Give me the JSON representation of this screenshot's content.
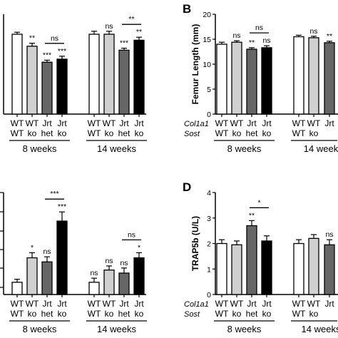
{
  "chart_data": [
    {
      "id": "A",
      "panel_label": "",
      "type": "bar",
      "ylabel": "",
      "categories": [
        {
          "line1": "WT",
          "line2": "WT"
        },
        {
          "line1": "WT",
          "line2": "ko"
        },
        {
          "line1": "Jrt",
          "line2": "het"
        },
        {
          "line1": "Jrt",
          "line2": "ko"
        },
        {
          "line1": "WT",
          "line2": "WT"
        },
        {
          "line1": "WT",
          "line2": "ko"
        },
        {
          "line1": "Jrt",
          "line2": "het"
        },
        {
          "line1": "Jrt",
          "line2": "ko"
        }
      ],
      "groups": [
        "8 weeks",
        "14 weeks"
      ],
      "ylim": [
        0,
        1
      ],
      "values": [
        0.8,
        0.68,
        0.52,
        0.55,
        0.8,
        0.8,
        0.64,
        0.74
      ],
      "errors": [
        0.02,
        0.03,
        0.02,
        0.03,
        0.03,
        0.03,
        0.02,
        0.03
      ],
      "colors": [
        "#ffffff",
        "#d0d0d0",
        "#666666",
        "#000000",
        "#ffffff",
        "#d0d0d0",
        "#666666",
        "#000000"
      ],
      "sig": [
        "",
        "**",
        "***",
        "***",
        "",
        "ns",
        "***",
        "**"
      ],
      "brackets": [
        {
          "from": 2,
          "to": 3,
          "label": "ns"
        },
        {
          "from": 6,
          "to": 7,
          "label": "**"
        }
      ]
    },
    {
      "id": "B",
      "panel_label": "B",
      "type": "bar",
      "ylabel": "Femur Length (mm)",
      "row_labels": [
        "Col1a1",
        "Sost"
      ],
      "categories": [
        {
          "line1": "WT",
          "line2": "WT"
        },
        {
          "line1": "WT",
          "line2": "ko"
        },
        {
          "line1": "Jrt",
          "line2": "het"
        },
        {
          "line1": "Jrt",
          "line2": "ko"
        },
        {
          "line1": "WT",
          "line2": "WT"
        },
        {
          "line1": "WT",
          "line2": "ko"
        },
        {
          "line1": "Jrt",
          "line2": ""
        }
      ],
      "groups": [
        "8 weeks",
        "14 week"
      ],
      "ylim": [
        0,
        20
      ],
      "yticks": [
        "0",
        "5",
        "10",
        "15",
        "20"
      ],
      "values": [
        14.0,
        14.4,
        13.0,
        13.3,
        15.5,
        15.3,
        14.3
      ],
      "errors": [
        0.4,
        0.3,
        0.3,
        0.4,
        0.3,
        0.3,
        0.3
      ],
      "colors": [
        "#ffffff",
        "#d0d0d0",
        "#666666",
        "#000000",
        "#ffffff",
        "#d0d0d0",
        "#666666"
      ],
      "sig": [
        "",
        "ns",
        "**",
        "ns",
        "",
        "ns",
        "**"
      ],
      "brackets": [
        {
          "from": 2,
          "to": 3,
          "label": "ns"
        }
      ]
    },
    {
      "id": "C",
      "panel_label": "",
      "type": "bar",
      "ylabel": "",
      "categories": [
        {
          "line1": "WT",
          "line2": "WT"
        },
        {
          "line1": "WT",
          "line2": "ko"
        },
        {
          "line1": "Jrt",
          "line2": "het"
        },
        {
          "line1": "Jrt",
          "line2": "ko"
        },
        {
          "line1": "WT",
          "line2": "WT"
        },
        {
          "line1": "WT",
          "line2": "ko"
        },
        {
          "line1": "Jrt",
          "line2": "het"
        },
        {
          "line1": "Jrt",
          "line2": "ko"
        }
      ],
      "groups": [
        "8 weeks",
        "14 weeks"
      ],
      "ylim": [
        0,
        1
      ],
      "values": [
        0.12,
        0.36,
        0.32,
        0.72,
        0.12,
        0.24,
        0.21,
        0.36
      ],
      "errors": [
        0.03,
        0.05,
        0.05,
        0.09,
        0.04,
        0.04,
        0.05,
        0.05
      ],
      "colors": [
        "#ffffff",
        "#d0d0d0",
        "#666666",
        "#000000",
        "#ffffff",
        "#d0d0d0",
        "#666666",
        "#000000"
      ],
      "sig": [
        "",
        "*",
        "ns",
        "***",
        "ns",
        "ns",
        "ns",
        "*"
      ],
      "brackets": [
        {
          "from": 2,
          "to": 3,
          "label": "***"
        },
        {
          "from": 6,
          "to": 7,
          "label": "ns"
        }
      ]
    },
    {
      "id": "D",
      "panel_label": "D",
      "type": "bar",
      "ylabel": "TRAP5b (U/L)",
      "row_labels": [
        "Col1a1",
        "Sost"
      ],
      "categories": [
        {
          "line1": "WT",
          "line2": "WT"
        },
        {
          "line1": "WT",
          "line2": "ko"
        },
        {
          "line1": "Jrt",
          "line2": "het"
        },
        {
          "line1": "Jrt",
          "line2": "ko"
        },
        {
          "line1": "WT",
          "line2": "WT"
        },
        {
          "line1": "WT",
          "line2": "ko"
        },
        {
          "line1": "Jrt",
          "line2": ""
        }
      ],
      "groups": [
        "8 weeks",
        "14 weeks"
      ],
      "ylim": [
        0,
        4
      ],
      "yticks": [
        "0",
        "1",
        "2",
        "3",
        "4"
      ],
      "values": [
        2.0,
        1.95,
        2.7,
        2.1,
        2.0,
        2.2,
        1.95
      ],
      "errors": [
        0.15,
        0.15,
        0.2,
        0.2,
        0.15,
        0.15,
        0.2
      ],
      "colors": [
        "#ffffff",
        "#d0d0d0",
        "#666666",
        "#000000",
        "#ffffff",
        "#d0d0d0",
        "#666666"
      ],
      "sig": [
        "",
        "",
        "**",
        "",
        "",
        "",
        "ns"
      ],
      "brackets": [
        {
          "from": 2,
          "to": 3,
          "label": "*"
        }
      ]
    }
  ]
}
